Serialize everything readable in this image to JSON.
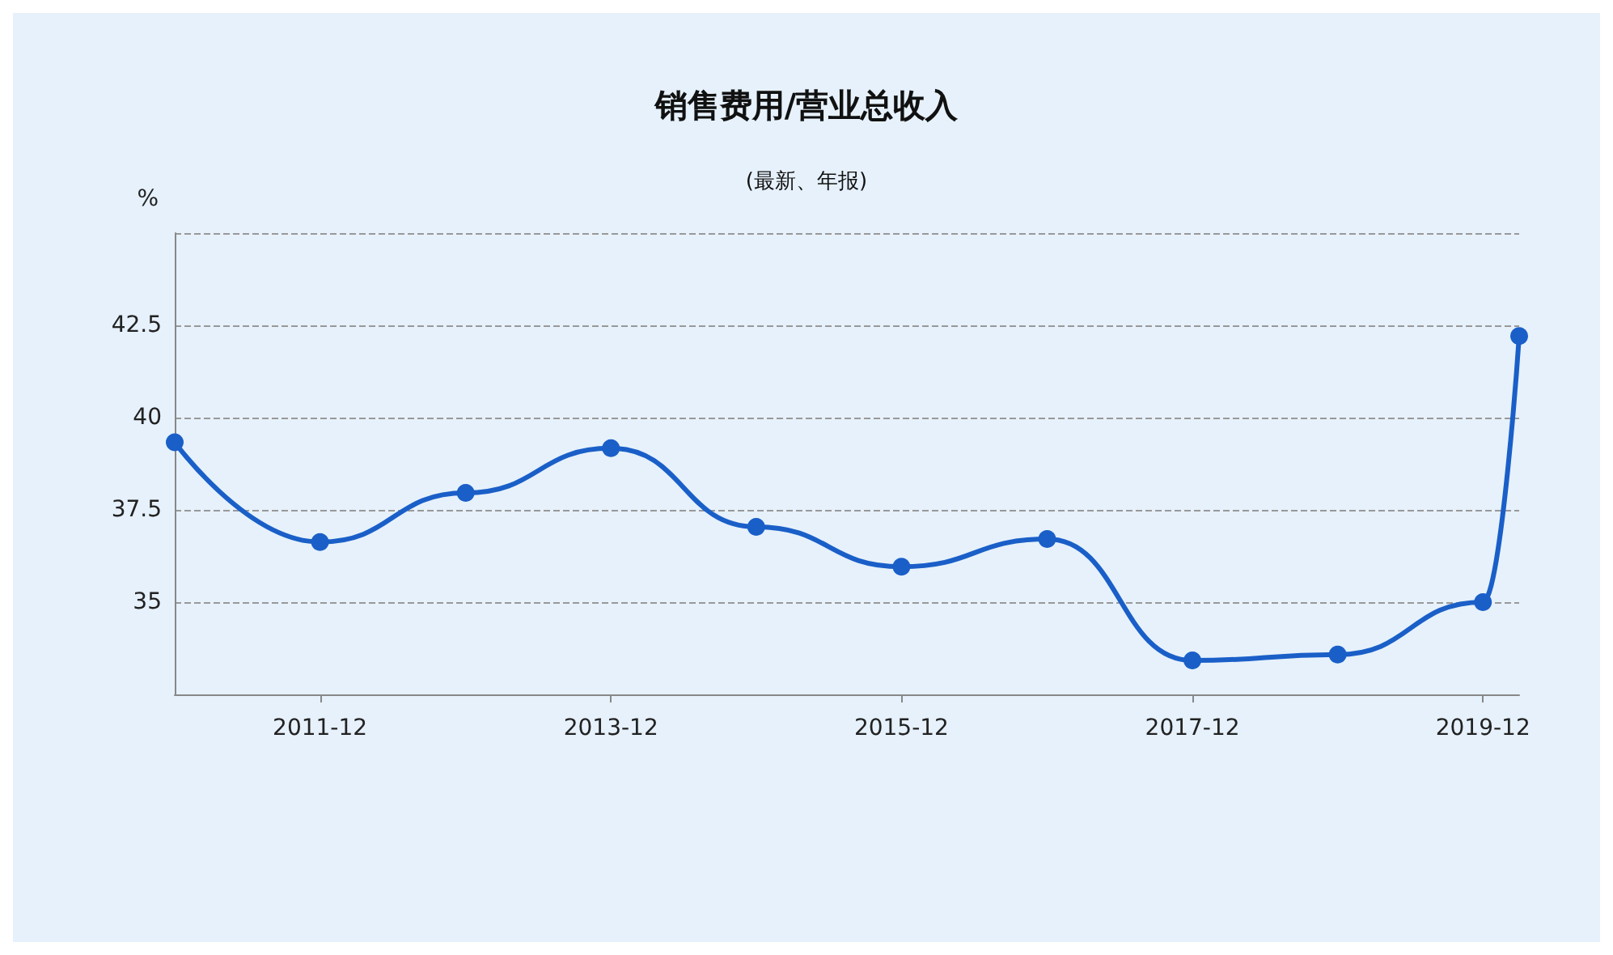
{
  "chart_data": {
    "type": "line",
    "title": "销售费用/营业总收入",
    "subtitle": "(最新、年报)",
    "ylabel": "%",
    "x": [
      "2010-12",
      "2011-12",
      "2012-12",
      "2013-12",
      "2014-12",
      "2015-12",
      "2016-12",
      "2017-12",
      "2018-12",
      "2019-12",
      "2020-03"
    ],
    "series": [
      {
        "color": "#1a5fc8",
        "values": [
          39.33,
          36.63,
          37.96,
          39.17,
          37.04,
          35.96,
          36.71,
          33.42,
          33.58,
          35.0,
          42.21
        ]
      }
    ],
    "xlim": [
      "2010-12",
      "2020-03"
    ],
    "xticks": [
      "2011-12",
      "2013-12",
      "2015-12",
      "2017-12",
      "2019-12"
    ],
    "ylim": [
      32.5,
      45
    ],
    "yticks": [
      35,
      37.5,
      40,
      42.5,
      {
        "value": 45,
        "label": null
      }
    ],
    "grid": "y",
    "marker": "circle",
    "line_style": "solid"
  }
}
